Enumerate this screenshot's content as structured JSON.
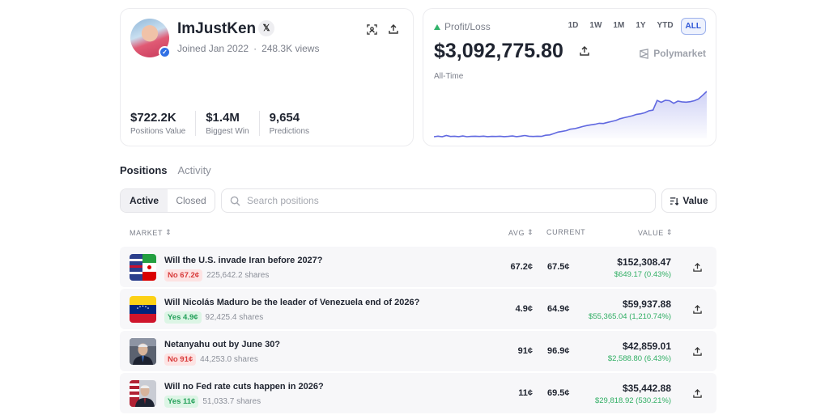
{
  "profile": {
    "username": "ImJustKen",
    "x_label": "𝕏",
    "joined": "Joined Jan 2022",
    "views": "248.3K views",
    "stats": [
      {
        "value": "$722.2K",
        "label": "Positions Value"
      },
      {
        "value": "$1.4M",
        "label": "Biggest Win"
      },
      {
        "value": "9,654",
        "label": "Predictions"
      }
    ]
  },
  "pnl": {
    "label": "Profit/Loss",
    "value": "$3,092,775.80",
    "period": "All-Time",
    "brand": "Polymarket",
    "ranges": [
      "1D",
      "1W",
      "1M",
      "1Y",
      "YTD",
      "ALL"
    ],
    "active_range": "ALL",
    "chart_color": "#6068e0",
    "series": [
      52,
      52.5,
      52,
      53,
      52.2,
      52.4,
      52.1,
      52.6,
      52,
      52.3,
      52.4,
      52.2,
      52.5,
      52.1,
      52.3,
      52.2,
      52.4,
      52.1,
      52.3,
      52.6,
      52.1,
      52.5,
      53,
      52.4,
      52.2,
      52.4,
      52.3,
      53.2,
      53.5,
      54.6,
      55.8,
      56.4,
      57,
      58.2,
      58.6,
      59.5,
      60.4,
      61.2,
      61.8,
      62.3,
      63.1,
      62.9,
      63.8,
      64.6,
      65.4,
      66.8,
      67.7,
      68.4,
      69.3,
      70.4,
      70.9,
      71.8,
      73.4,
      74,
      81.9,
      80.4,
      82.1,
      81.7,
      79.6,
      81.4,
      80.8,
      80.5,
      80.9,
      81.7,
      83.2,
      86.2,
      89.4
    ]
  },
  "tabs": [
    "Positions",
    "Activity"
  ],
  "filter": {
    "segments": [
      "Active",
      "Closed"
    ],
    "active_segment": "Active",
    "search_placeholder": "Search positions",
    "sort_label": "Value"
  },
  "table": {
    "headers": {
      "market": "MARKET",
      "avg": "AVG",
      "current": "CURRENT",
      "value": "VALUE"
    },
    "rows": [
      {
        "title": "Will the U.S. invade Iran before 2027?",
        "side": "No 67.2¢",
        "side_type": "no",
        "shares": "225,642.2 shares",
        "avg": "67.2¢",
        "current": "67.5¢",
        "value": "$152,308.47",
        "change": "$649.17 (0.43%)",
        "thumb": "us-iran-flags"
      },
      {
        "title": "Will Nicolás Maduro be the leader of Venezuela end of 2026?",
        "side": "Yes 4.9¢",
        "side_type": "yes",
        "shares": "92,425.4 shares",
        "avg": "4.9¢",
        "current": "64.9¢",
        "value": "$59,937.88",
        "change": "$55,365.04 (1,210.74%)",
        "thumb": "venezuela-flag"
      },
      {
        "title": "Netanyahu out by June 30?",
        "side": "No 91¢",
        "side_type": "no",
        "shares": "44,253.0 shares",
        "avg": "91¢",
        "current": "96.9¢",
        "value": "$42,859.01",
        "change": "$2,588.80 (6.43%)",
        "thumb": "netanyahu-photo"
      },
      {
        "title": "Will no Fed rate cuts happen in 2026?",
        "side": "Yes 11¢",
        "side_type": "yes",
        "shares": "51,033.7 shares",
        "avg": "11¢",
        "current": "69.5¢",
        "value": "$35,442.88",
        "change": "$29,818.92 (530.21%)",
        "thumb": "fed-chair-photo"
      }
    ]
  }
}
